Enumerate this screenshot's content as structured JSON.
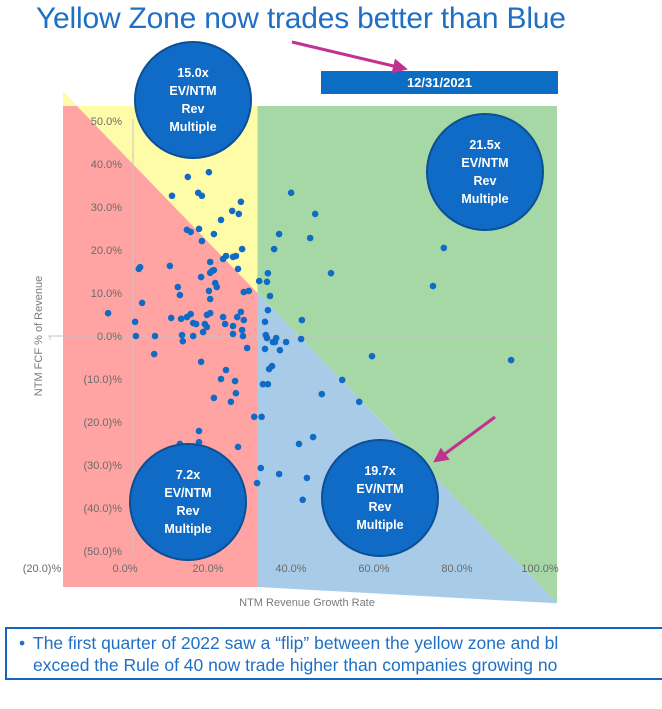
{
  "title": "Yellow Zone now trades better than Blue",
  "footer": {
    "bullet": "•",
    "lines": [
      "The first quarter of 2022 saw a “flip” between the yellow zone and bl",
      "exceed the Rule of 40 now trade higher than companies growing no"
    ]
  },
  "colors": {
    "accent": "#1f6fc5",
    "bubble": "#0f6bc6",
    "point": "#0f6bc6",
    "red_zone": "#ffa3a3",
    "yellow_zone": "#fffca8",
    "green_zone": "#a6d8a6",
    "blue_zone": "#a8cce8",
    "arrow": "#c2318f",
    "banner": "#0c6dc4"
  },
  "chart_data": {
    "type": "scatter",
    "title": "",
    "date_label": "12/31/2021",
    "xlabel": "NTM Revenue Growth Rate",
    "ylabel": "NTM FCF % of Revenue",
    "xlim": [
      -20,
      100
    ],
    "ylim": [
      -50,
      50
    ],
    "x_ticks": [
      -20,
      0,
      20,
      40,
      60,
      80,
      100
    ],
    "x_tick_labels": [
      "(20.0)%",
      "0.0%",
      "20.0%",
      "40.0%",
      "60.0%",
      "80.0%",
      "100.0%"
    ],
    "y_ticks": [
      50,
      40,
      30,
      20,
      10,
      0,
      -10,
      -20,
      -30,
      -40,
      -50
    ],
    "y_tick_labels": [
      "50.0%",
      "40.0%",
      "30.0%",
      "20.0%",
      "10.0%",
      "0.0%",
      "(10.0)%",
      "(20.0)%",
      "(30.0)%",
      "(40.0)%",
      "(50.0)%"
    ],
    "grid": false,
    "zones": [
      {
        "name": "red",
        "description": "growth < 30% and growth + FCF < 40%"
      },
      {
        "name": "yellow",
        "description": "growth < 30% and growth + FCF >= 40%"
      },
      {
        "name": "green",
        "description": "growth >= 30% and growth + FCF >= 40%"
      },
      {
        "name": "blue",
        "description": "growth >= 30% and growth + FCF < 40%"
      }
    ],
    "zone_growth_threshold": 30,
    "rule_of": 40,
    "annotations": [
      {
        "zone": "yellow",
        "value": "15.0x",
        "lines": [
          "15.0x",
          "EV/NTM",
          "Rev",
          "Multiple"
        ]
      },
      {
        "zone": "green",
        "value": "21.5x",
        "lines": [
          "21.5x",
          "EV/NTM",
          "Rev",
          "Multiple"
        ]
      },
      {
        "zone": "red",
        "value": "7.2x",
        "lines": [
          "7.2x",
          "EV/NTM",
          "Rev",
          "Multiple"
        ]
      },
      {
        "zone": "blue",
        "value": "19.7x",
        "lines": [
          "19.7x",
          "EV/NTM",
          "Rev",
          "Multiple"
        ]
      }
    ],
    "points": [
      [
        13.2,
        37.0
      ],
      [
        18.3,
        38.1
      ],
      [
        9.4,
        32.6
      ],
      [
        15.7,
        33.3
      ],
      [
        16.6,
        32.6
      ],
      [
        26.0,
        31.2
      ],
      [
        23.9,
        29.1
      ],
      [
        25.5,
        28.4
      ],
      [
        21.2,
        27.0
      ],
      [
        13.0,
        24.7
      ],
      [
        13.9,
        24.2
      ],
      [
        15.9,
        24.9
      ],
      [
        19.5,
        23.7
      ],
      [
        16.6,
        22.1
      ],
      [
        26.3,
        20.2
      ],
      [
        24.1,
        18.4
      ],
      [
        21.7,
        17.9
      ],
      [
        18.6,
        17.2
      ],
      [
        8.9,
        16.3
      ],
      [
        1.7,
        16.0
      ],
      [
        1.4,
        15.6
      ],
      [
        19.5,
        15.3
      ],
      [
        22.4,
        18.6
      ],
      [
        24.8,
        18.6
      ],
      [
        25.3,
        15.6
      ],
      [
        19.0,
        15.1
      ],
      [
        18.6,
        14.7
      ],
      [
        16.4,
        13.7
      ],
      [
        19.8,
        12.3
      ],
      [
        20.2,
        11.4
      ],
      [
        10.8,
        11.4
      ],
      [
        11.3,
        9.5
      ],
      [
        18.3,
        10.5
      ],
      [
        26.7,
        10.2
      ],
      [
        27.9,
        10.5
      ],
      [
        18.6,
        8.6
      ],
      [
        2.2,
        7.7
      ],
      [
        -6.0,
        5.3
      ],
      [
        18.6,
        5.3
      ],
      [
        17.8,
        4.9
      ],
      [
        13.9,
        5.1
      ],
      [
        13.0,
        4.4
      ],
      [
        9.2,
        4.2
      ],
      [
        11.6,
        4.0
      ],
      [
        21.7,
        4.4
      ],
      [
        25.1,
        4.4
      ],
      [
        26.0,
        5.6
      ],
      [
        26.7,
        3.7
      ],
      [
        14.5,
        3.0
      ],
      [
        15.2,
        2.8
      ],
      [
        0.5,
        3.3
      ],
      [
        22.2,
        2.8
      ],
      [
        17.3,
        2.8
      ],
      [
        17.8,
        2.1
      ],
      [
        16.9,
        0.9
      ],
      [
        24.1,
        2.3
      ],
      [
        26.3,
        1.4
      ],
      [
        24.1,
        0.5
      ],
      [
        26.5,
        0.0
      ],
      [
        0.7,
        0.0
      ],
      [
        5.3,
        0.0
      ],
      [
        14.5,
        0.0
      ],
      [
        11.8,
        0.2
      ],
      [
        12.0,
        -1.2
      ],
      [
        27.5,
        -2.8
      ],
      [
        5.1,
        -4.2
      ],
      [
        16.4,
        -6.0
      ],
      [
        22.4,
        -7.9
      ],
      [
        21.2,
        -10.0
      ],
      [
        24.6,
        -10.5
      ],
      [
        24.8,
        -13.3
      ],
      [
        19.5,
        -14.4
      ],
      [
        23.6,
        -15.3
      ],
      [
        29.2,
        -18.8
      ],
      [
        15.9,
        -22.1
      ],
      [
        15.9,
        -24.7
      ],
      [
        11.3,
        -25.1
      ],
      [
        25.3,
        -25.8
      ],
      [
        38.1,
        33.3
      ],
      [
        43.9,
        28.4
      ],
      [
        35.2,
        23.7
      ],
      [
        42.7,
        22.8
      ],
      [
        34.0,
        20.2
      ],
      [
        32.5,
        14.6
      ],
      [
        47.7,
        14.6
      ],
      [
        30.4,
        12.8
      ],
      [
        32.3,
        12.6
      ],
      [
        33.0,
        9.3
      ],
      [
        32.5,
        6.0
      ],
      [
        31.8,
        3.3
      ],
      [
        40.7,
        3.7
      ],
      [
        32.0,
        0.2
      ],
      [
        32.3,
        -0.5
      ],
      [
        34.5,
        -0.5
      ],
      [
        33.7,
        -1.4
      ],
      [
        34.2,
        -1.4
      ],
      [
        36.9,
        -1.4
      ],
      [
        40.5,
        -0.7
      ],
      [
        31.8,
        -3.0
      ],
      [
        35.4,
        -3.3
      ],
      [
        33.5,
        -7.0
      ],
      [
        32.8,
        -7.7
      ],
      [
        57.6,
        -4.7
      ],
      [
        50.4,
        -10.2
      ],
      [
        31.3,
        -11.2
      ],
      [
        32.5,
        -11.2
      ],
      [
        45.5,
        -13.5
      ],
      [
        54.5,
        -15.3
      ],
      [
        31.0,
        -18.8
      ],
      [
        43.4,
        -23.5
      ],
      [
        40.0,
        -25.1
      ],
      [
        30.8,
        -30.7
      ],
      [
        35.2,
        -32.1
      ],
      [
        41.9,
        -33.0
      ],
      [
        29.9,
        -34.2
      ],
      [
        40.9,
        -38.1
      ],
      [
        74.9,
        20.5
      ],
      [
        72.3,
        11.6
      ],
      [
        91.1,
        -5.6
      ]
    ]
  }
}
